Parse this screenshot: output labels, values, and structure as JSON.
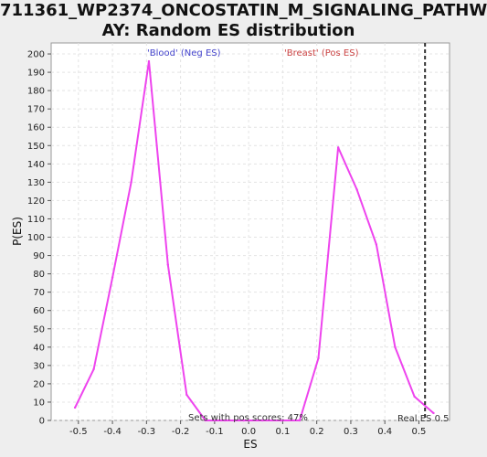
{
  "title_line1": "711361_WP2374_ONCOSTATIN_M_SIGNALING_PATHW",
  "title_line2": "AY: Random ES distribution",
  "chart_data": {
    "type": "line",
    "xlabel": "ES",
    "ylabel": "P(ES)",
    "xlim": [
      -0.58,
      0.59
    ],
    "ylim": [
      0,
      206
    ],
    "x_ticks": [
      -0.5,
      -0.4,
      -0.3,
      -0.2,
      -0.1,
      0.0,
      0.1,
      0.2,
      0.3,
      0.4,
      0.5
    ],
    "x_tick_labels": [
      "-0.5",
      "-0.4",
      "-0.3",
      "-0.2",
      "-0.1",
      "0.0",
      "0.1",
      "0.2",
      "0.3",
      "0.4",
      "0.5"
    ],
    "y_ticks": [
      0,
      10,
      20,
      30,
      40,
      50,
      60,
      70,
      80,
      90,
      100,
      110,
      120,
      130,
      140,
      150,
      160,
      170,
      180,
      190,
      200
    ],
    "grid": true,
    "series": [
      {
        "color": "#ee44ee",
        "x": [
          -0.51,
          -0.455,
          -0.4,
          -0.345,
          -0.293,
          -0.237,
          -0.182,
          -0.127,
          -0.07,
          -0.015,
          0.04,
          0.095,
          0.15,
          0.205,
          0.263,
          0.318,
          0.375,
          0.43,
          0.487,
          0.543
        ],
        "y": [
          7,
          28,
          78,
          130,
          196,
          85,
          14,
          0,
          0,
          0,
          0,
          0,
          0,
          34,
          149,
          126,
          96,
          40,
          13,
          4
        ]
      }
    ],
    "annotations": {
      "neg_label": "'Blood' (Neg ES)",
      "neg_color": "#4444cc",
      "pos_label": "'Breast' (Pos ES)",
      "pos_color": "#cc4444",
      "sets_text": "Sets with pos scores: 47%",
      "real_es_text": "Real ES 0.5",
      "real_es_value": 0.518
    }
  }
}
